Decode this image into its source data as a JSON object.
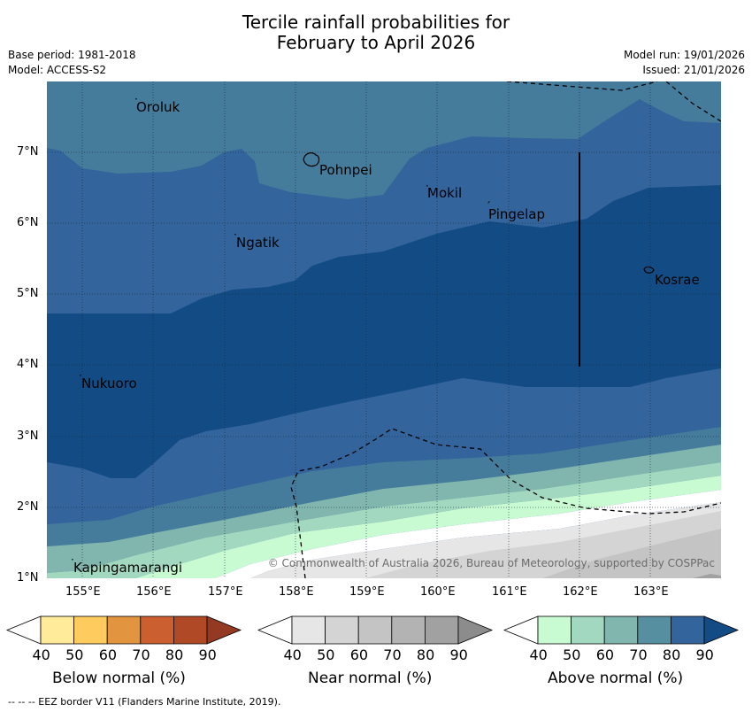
{
  "header": {
    "title_line1": "Tercile rainfall probabilities for",
    "title_line2": "February to April 2026",
    "base_period": "Base period: 1981-2018",
    "model": "Model: ACCESS-S2",
    "model_run": "Model run: 19/01/2026",
    "issued": "Issued: 21/01/2026"
  },
  "map": {
    "latitude_labels": [
      "1°N",
      "2°N",
      "3°N",
      "4°N",
      "5°N",
      "6°N",
      "7°N"
    ],
    "longitude_labels": [
      "155°E",
      "156°E",
      "157°E",
      "158°E",
      "159°E",
      "160°E",
      "161°E",
      "162°E",
      "163°E"
    ],
    "places": [
      "Oroluk",
      "Pohnpei",
      "Mokil",
      "Pingelap",
      "Ngatik",
      "Kosrae",
      "Nukuoro",
      "Kapingamarangi"
    ],
    "copyright": "© Commonwealth of Australia 2026, Bureau of Meteorology, supported by COSPPac"
  },
  "legends": [
    {
      "title": "Below normal (%)",
      "ticks": [
        "40",
        "50",
        "60",
        "70",
        "80",
        "90"
      ],
      "colors": [
        "#ffffff",
        "#ffeb99",
        "#fecb5f",
        "#e2943f",
        "#cc5f30",
        "#b04a26",
        "#953a22"
      ]
    },
    {
      "title": "Near normal (%)",
      "ticks": [
        "40",
        "50",
        "60",
        "70",
        "80",
        "90"
      ],
      "colors": [
        "#ffffff",
        "#e6e6e6",
        "#d4d4d4",
        "#c4c4c4",
        "#b3b3b3",
        "#a1a1a1",
        "#8c8c8c"
      ]
    },
    {
      "title": "Above normal (%)",
      "ticks": [
        "40",
        "50",
        "60",
        "70",
        "80",
        "90"
      ],
      "colors": [
        "#ffffff",
        "#c9fbd3",
        "#a1d8bf",
        "#80b6ad",
        "#568f9f",
        "#33649b",
        "#134c85"
      ]
    }
  ],
  "footer": "--  --  -- EEZ border V11 (Flanders Marine Institute, 2019)."
}
